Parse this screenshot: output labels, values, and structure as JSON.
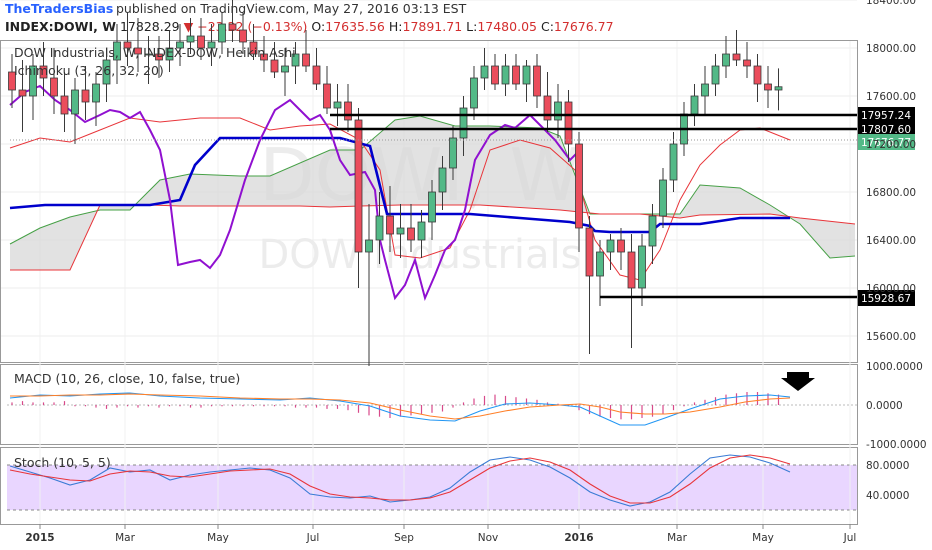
{
  "header": {
    "publisher": "TheTradersBias",
    "published_text": "published on TradingView.com, May 27, 2016 03:13 EST",
    "symbol": "INDEX:DOWI, W",
    "last": "17828.29",
    "change": "−23.22 (−0.13%)",
    "open_label": "O:",
    "open": "17635.56",
    "high_label": "H:",
    "high": "17891.71",
    "low_label": "L:",
    "low": "17480.05",
    "close_label": "C:",
    "close": "17676.77"
  },
  "colors": {
    "up": "#53b987",
    "down": "#eb4d5c",
    "kijun": "#0000cc",
    "chikou": "#9010d0",
    "tenkan": "#e8353a",
    "cloud": "#d8d8d8",
    "macd": "#2196f3",
    "signal": "#ff7f27",
    "stoch_k": "#3a7bd5",
    "stoch_d": "#e8353a",
    "stoch_bg": "#e9d6ff",
    "brand": "#2962ff"
  },
  "main_pane": {
    "title": "DOW Industrials, W, INDEX-DOW, Heikin Ashi",
    "indicator": "Ichimoku (3, 26, 32, 20)",
    "watermark_symbol": "DOWI, W",
    "watermark_name": "DOW Industrials"
  },
  "macd_pane": {
    "title": "MACD (10, 26, close, 10, false, true)"
  },
  "stoch_pane": {
    "title": "Stoch (10, 5, 5)"
  },
  "chart_data": [
    {
      "type": "candlestick",
      "title": "DOW Industrials, W, INDEX-DOW, Heikin Ashi",
      "y_ticks": [
        15600,
        16000,
        16400,
        16800,
        17200,
        17600,
        18000,
        18400
      ],
      "y_tick_labels": [
        "15600.00",
        "16000.00",
        "16400.00",
        "16800.00",
        "17200.00",
        "17600.00",
        "18000.00",
        "18400.00"
      ],
      "ylim": [
        15150,
        18650
      ],
      "x_labels": [
        "2015",
        "Mar",
        "May",
        "Jul",
        "Sep",
        "Nov",
        "2016",
        "Mar",
        "May",
        "Jul"
      ],
      "horizontal_levels": [
        17957.24,
        17807.6,
        15928.67
      ],
      "level_labels": [
        "17957.24",
        "17807.60",
        "15928.67"
      ],
      "last_price": 17676.77,
      "last_price_label": "17676.77",
      "ohlc": [
        [
          17800,
          17950,
          17500,
          17650
        ],
        [
          17650,
          17900,
          17300,
          17600
        ],
        [
          17600,
          17950,
          17400,
          17850
        ],
        [
          17850,
          18050,
          17600,
          17750
        ],
        [
          17750,
          18000,
          17450,
          17600
        ],
        [
          17600,
          17800,
          17300,
          17450
        ],
        [
          17450,
          17750,
          17200,
          17650
        ],
        [
          17650,
          17850,
          17400,
          17550
        ],
        [
          17550,
          17800,
          17350,
          17700
        ],
        [
          17700,
          18000,
          17550,
          17900
        ],
        [
          17900,
          18200,
          17700,
          18050
        ],
        [
          18050,
          18300,
          17850,
          18000
        ],
        [
          18000,
          18250,
          17800,
          17950
        ],
        [
          17950,
          18100,
          17700,
          17950
        ],
        [
          17950,
          18100,
          17750,
          17900
        ],
        [
          17900,
          18150,
          17800,
          18000
        ],
        [
          18000,
          18200,
          17850,
          18050
        ],
        [
          18050,
          18250,
          17950,
          18100
        ],
        [
          18100,
          18250,
          17900,
          18000
        ],
        [
          18000,
          18200,
          17850,
          18050
        ],
        [
          18050,
          18300,
          17950,
          18200
        ],
        [
          18200,
          18400,
          18050,
          18150
        ],
        [
          18150,
          18300,
          17950,
          18050
        ],
        [
          18050,
          18200,
          17900,
          17950
        ],
        [
          17950,
          18100,
          17800,
          17900
        ],
        [
          17900,
          18050,
          17750,
          17800
        ],
        [
          17800,
          18000,
          17600,
          17850
        ],
        [
          17850,
          18050,
          17700,
          17950
        ],
        [
          17950,
          18150,
          17800,
          17850
        ],
        [
          17850,
          18000,
          17650,
          17700
        ],
        [
          17700,
          17850,
          17450,
          17500
        ],
        [
          17500,
          17700,
          17350,
          17550
        ],
        [
          17550,
          17700,
          17300,
          17400
        ],
        [
          17400,
          17500,
          16000,
          16300
        ],
        [
          16300,
          16700,
          15350,
          16400
        ],
        [
          16400,
          16800,
          16200,
          16600
        ],
        [
          16600,
          16850,
          16300,
          16450
        ],
        [
          16450,
          16700,
          16250,
          16500
        ],
        [
          16500,
          16700,
          16300,
          16400
        ],
        [
          16400,
          16650,
          16250,
          16550
        ],
        [
          16550,
          16900,
          16400,
          16800
        ],
        [
          16800,
          17100,
          16650,
          17000
        ],
        [
          17000,
          17350,
          16900,
          17250
        ],
        [
          17250,
          17600,
          17100,
          17500
        ],
        [
          17500,
          17850,
          17400,
          17750
        ],
        [
          17750,
          18000,
          17650,
          17850
        ],
        [
          17850,
          17950,
          17650,
          17700
        ],
        [
          17700,
          17950,
          17600,
          17850
        ],
        [
          17850,
          17950,
          17650,
          17700
        ],
        [
          17700,
          17900,
          17550,
          17850
        ],
        [
          17850,
          17950,
          17500,
          17600
        ],
        [
          17600,
          17800,
          17300,
          17400
        ],
        [
          17400,
          17700,
          17250,
          17550
        ],
        [
          17550,
          17650,
          17050,
          17200
        ],
        [
          17200,
          17300,
          16300,
          16500
        ],
        [
          16500,
          16600,
          15450,
          16100
        ],
        [
          16100,
          16400,
          15850,
          16300
        ],
        [
          16300,
          16450,
          16150,
          16400
        ],
        [
          16400,
          16500,
          16150,
          16300
        ],
        [
          16300,
          16450,
          15500,
          16000
        ],
        [
          16000,
          16450,
          15850,
          16350
        ],
        [
          16350,
          16700,
          16200,
          16600
        ],
        [
          16600,
          17000,
          16500,
          16900
        ],
        [
          16900,
          17300,
          16800,
          17200
        ],
        [
          17200,
          17550,
          17100,
          17450
        ],
        [
          17450,
          17700,
          17350,
          17600
        ],
        [
          17600,
          17850,
          17450,
          17700
        ],
        [
          17700,
          17950,
          17600,
          17850
        ],
        [
          17850,
          18100,
          17750,
          17950
        ],
        [
          17950,
          18150,
          17850,
          17900
        ],
        [
          17900,
          18050,
          17750,
          17850
        ],
        [
          17850,
          17950,
          17550,
          17700
        ],
        [
          17700,
          17850,
          17500,
          17650
        ],
        [
          17650,
          17830,
          17480,
          17677
        ]
      ]
    },
    {
      "type": "line",
      "title": "MACD (10, 26, close, 10, false, true)",
      "y_tick_labels": [
        "1000.0000",
        "0.0000",
        "-1000.0000"
      ],
      "annotation": "down-arrow"
    },
    {
      "type": "line",
      "title": "Stoch (10, 5, 5)",
      "y_tick_labels": [
        "80.0000",
        "40.0000"
      ],
      "bands": [
        80,
        20
      ]
    }
  ]
}
